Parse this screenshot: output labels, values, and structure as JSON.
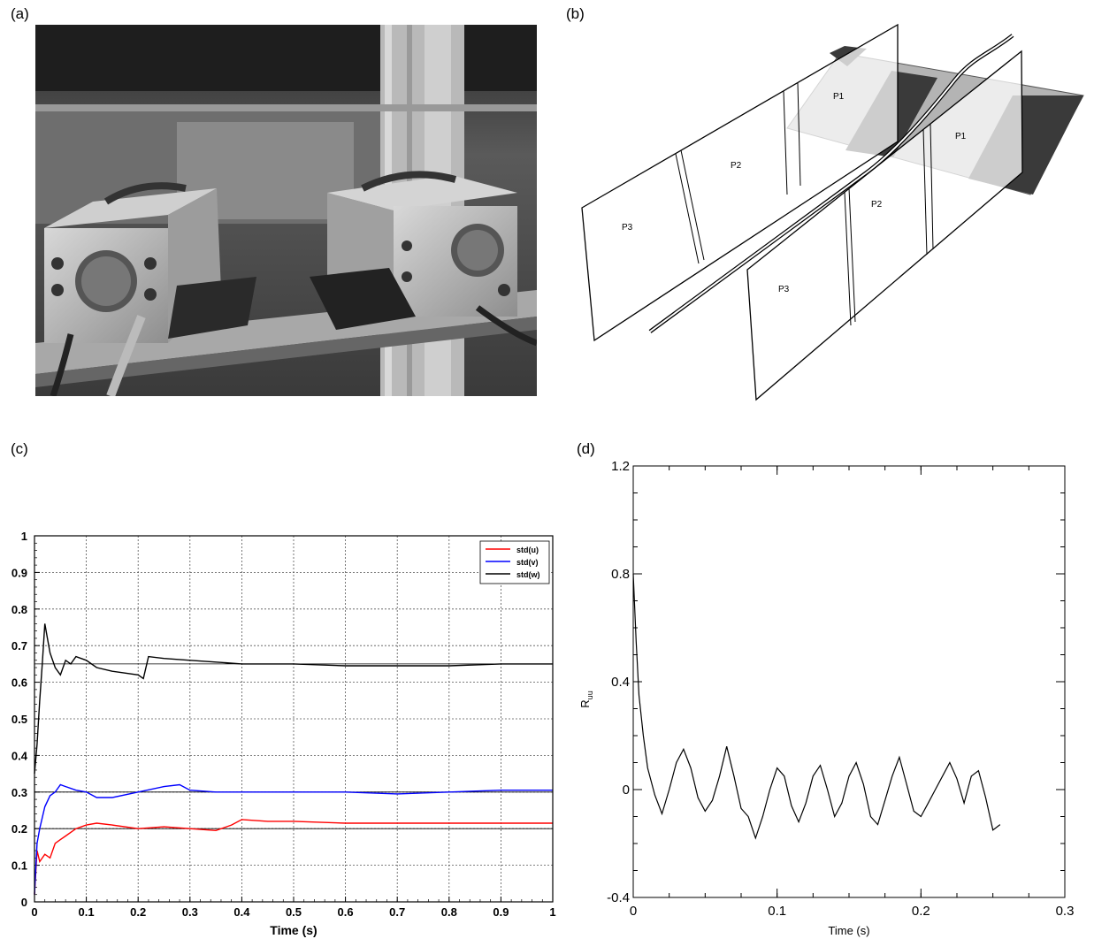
{
  "panels": {
    "a": {
      "label": "(a)"
    },
    "b": {
      "label": "(b)",
      "sheet_labels": [
        "P1",
        "P2",
        "P3",
        "P1",
        "P2",
        "P3"
      ]
    },
    "c": {
      "label": "(c)"
    },
    "d": {
      "label": "(d)"
    }
  },
  "chart_data": [
    {
      "panel": "c",
      "type": "line",
      "title": "",
      "xlabel": "Time (s)",
      "ylabel": "",
      "xlim": [
        0,
        1
      ],
      "ylim": [
        0,
        1
      ],
      "xticks": [
        "0",
        "0.1",
        "0.2",
        "0.3",
        "0.4",
        "0.5",
        "0.6",
        "0.7",
        "0.8",
        "0.9",
        "1"
      ],
      "yticks": [
        "0",
        "0.1",
        "0.2",
        "0.3",
        "0.4",
        "0.5",
        "0.6",
        "0.7",
        "0.8",
        "0.9",
        "1"
      ],
      "grid": true,
      "legend_position": "top-right",
      "reference_lines": [
        0.65,
        0.3,
        0.2
      ],
      "series": [
        {
          "name": "std(u)",
          "color": "#ff0000",
          "x": [
            0,
            0.005,
            0.01,
            0.02,
            0.03,
            0.04,
            0.05,
            0.06,
            0.08,
            0.1,
            0.12,
            0.15,
            0.2,
            0.25,
            0.3,
            0.35,
            0.38,
            0.4,
            0.45,
            0.5,
            0.6,
            0.7,
            0.8,
            0.9,
            1.0
          ],
          "y": [
            0.02,
            0.14,
            0.11,
            0.13,
            0.12,
            0.16,
            0.17,
            0.18,
            0.2,
            0.21,
            0.215,
            0.21,
            0.2,
            0.205,
            0.2,
            0.195,
            0.21,
            0.225,
            0.22,
            0.22,
            0.215,
            0.215,
            0.215,
            0.215,
            0.215
          ]
        },
        {
          "name": "std(v)",
          "color": "#0000ff",
          "x": [
            0,
            0.005,
            0.01,
            0.02,
            0.03,
            0.04,
            0.05,
            0.06,
            0.08,
            0.1,
            0.12,
            0.15,
            0.2,
            0.25,
            0.28,
            0.3,
            0.35,
            0.4,
            0.5,
            0.6,
            0.7,
            0.8,
            0.9,
            1.0
          ],
          "y": [
            0.02,
            0.16,
            0.2,
            0.26,
            0.29,
            0.3,
            0.32,
            0.315,
            0.305,
            0.3,
            0.285,
            0.285,
            0.3,
            0.315,
            0.32,
            0.305,
            0.3,
            0.3,
            0.3,
            0.3,
            0.295,
            0.3,
            0.305,
            0.305
          ]
        },
        {
          "name": "std(w)",
          "color": "#000000",
          "x": [
            0,
            0.005,
            0.01,
            0.015,
            0.02,
            0.025,
            0.03,
            0.04,
            0.05,
            0.06,
            0.07,
            0.08,
            0.1,
            0.12,
            0.15,
            0.2,
            0.21,
            0.22,
            0.25,
            0.3,
            0.35,
            0.4,
            0.5,
            0.6,
            0.7,
            0.8,
            0.9,
            1.0
          ],
          "y": [
            0.35,
            0.43,
            0.55,
            0.65,
            0.76,
            0.72,
            0.68,
            0.64,
            0.62,
            0.66,
            0.65,
            0.67,
            0.66,
            0.64,
            0.63,
            0.62,
            0.61,
            0.67,
            0.665,
            0.66,
            0.655,
            0.65,
            0.65,
            0.645,
            0.645,
            0.645,
            0.65,
            0.65
          ]
        }
      ]
    },
    {
      "panel": "d",
      "type": "line",
      "title": "",
      "xlabel": "Time (s)",
      "ylabel": "R",
      "ylabel_subscript": "uu",
      "xlim": [
        0,
        0.3
      ],
      "ylim": [
        -0.4,
        1.2
      ],
      "xticks": [
        "0",
        "0.1",
        "0.2",
        "0.3"
      ],
      "yticks": [
        "-0.4",
        "0",
        "0.4",
        "0.8",
        "1.2"
      ],
      "grid": false,
      "series": [
        {
          "name": "",
          "color": "#000000",
          "x": [
            0,
            0.002,
            0.004,
            0.007,
            0.01,
            0.015,
            0.02,
            0.025,
            0.03,
            0.035,
            0.04,
            0.045,
            0.05,
            0.055,
            0.06,
            0.065,
            0.07,
            0.075,
            0.08,
            0.085,
            0.09,
            0.095,
            0.1,
            0.105,
            0.11,
            0.115,
            0.12,
            0.125,
            0.13,
            0.135,
            0.14,
            0.145,
            0.15,
            0.155,
            0.16,
            0.165,
            0.17,
            0.175,
            0.18,
            0.185,
            0.19,
            0.195,
            0.2,
            0.205,
            0.21,
            0.215,
            0.22,
            0.225,
            0.23,
            0.235,
            0.24,
            0.245,
            0.25,
            0.255
          ],
          "y": [
            0.8,
            0.55,
            0.35,
            0.2,
            0.08,
            -0.02,
            -0.09,
            0.0,
            0.1,
            0.15,
            0.08,
            -0.03,
            -0.08,
            -0.04,
            0.05,
            0.16,
            0.05,
            -0.07,
            -0.1,
            -0.18,
            -0.1,
            0.0,
            0.08,
            0.05,
            -0.06,
            -0.12,
            -0.05,
            0.05,
            0.09,
            0.0,
            -0.1,
            -0.05,
            0.05,
            0.1,
            0.02,
            -0.1,
            -0.13,
            -0.04,
            0.05,
            0.12,
            0.02,
            -0.08,
            -0.1,
            -0.05,
            0.0,
            0.05,
            0.1,
            0.04,
            -0.05,
            0.05,
            0.07,
            -0.03,
            -0.15,
            -0.13
          ]
        }
      ]
    }
  ]
}
